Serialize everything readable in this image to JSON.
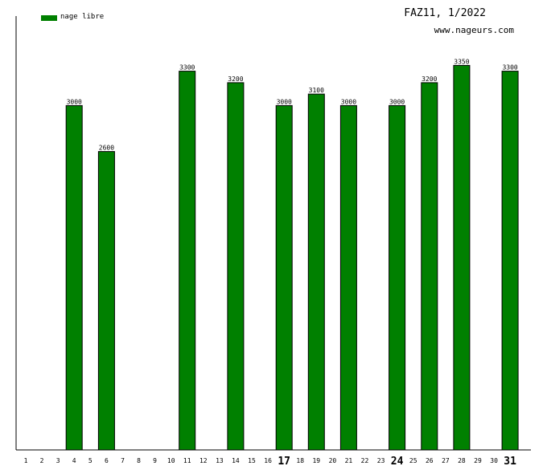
{
  "header": {
    "title": "FAZ11, 1/2022",
    "site": "www.nageurs.com"
  },
  "legend": {
    "label": "nage libre",
    "color": "#008000"
  },
  "chart_data": {
    "type": "bar",
    "title": "FAZ11, 1/2022",
    "xlabel": "",
    "ylabel": "",
    "ylim": [
      0,
      3500
    ],
    "grid": false,
    "legend_position": "top-left",
    "bar_color": "#008000",
    "categories": [
      "1",
      "2",
      "3",
      "4",
      "5",
      "6",
      "7",
      "8",
      "9",
      "10",
      "11",
      "12",
      "13",
      "14",
      "15",
      "16",
      "17",
      "18",
      "19",
      "20",
      "21",
      "22",
      "23",
      "24",
      "25",
      "26",
      "27",
      "28",
      "29",
      "30",
      "31"
    ],
    "emphasized_categories": [
      "17",
      "24",
      "31"
    ],
    "series": [
      {
        "name": "nage libre",
        "values": [
          null,
          null,
          null,
          3000,
          null,
          2600,
          null,
          null,
          null,
          null,
          3300,
          null,
          null,
          3200,
          null,
          null,
          3000,
          null,
          3100,
          null,
          3000,
          null,
          null,
          3000,
          null,
          3200,
          null,
          3350,
          null,
          null,
          3300
        ]
      }
    ]
  }
}
